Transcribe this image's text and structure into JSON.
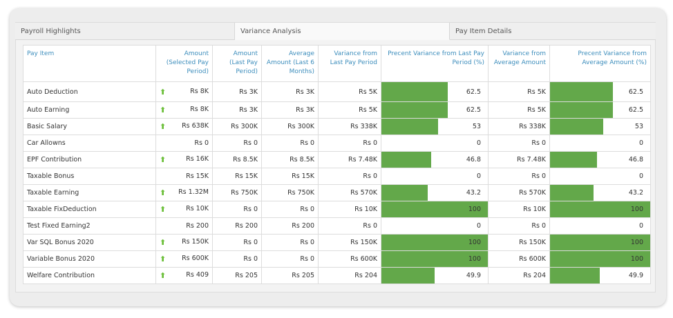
{
  "tabs": [
    {
      "label": "Payroll Highlights"
    },
    {
      "label": "Variance Analysis"
    },
    {
      "label": "Pay Item Details"
    }
  ],
  "columns": {
    "pay_item": "Pay Item",
    "amount_selected": "Amount (Selected Pay Period)",
    "amount_last": "Amount (Last Pay Period)",
    "avg_last6": "Average Amount (Last 6 Months)",
    "var_last": "Variance from Last Pay Period",
    "pct_var_last": "Precent Variance from Last Pay Period (%)",
    "var_avg": "Variance from Average Amount",
    "pct_var_avg": "Precent Variance from Average Amount (%)"
  },
  "colors": {
    "bar": "#63a84a",
    "arrow": "#6cbf3a",
    "header_text": "#3c8dbc"
  },
  "rows": [
    {
      "name": "Auto Deduction",
      "up": true,
      "amount": "Rs 8K",
      "last": "Rs 3K",
      "avg": "Rs 3K",
      "var_last": "Rs 5K",
      "pct_last": "62.5",
      "var_avg": "Rs 5K",
      "pct_avg": "62.5"
    },
    {
      "name": "Auto Earning",
      "up": true,
      "amount": "Rs 8K",
      "last": "Rs 3K",
      "avg": "Rs 3K",
      "var_last": "Rs 5K",
      "pct_last": "62.5",
      "var_avg": "Rs 5K",
      "pct_avg": "62.5"
    },
    {
      "name": "Basic Salary",
      "up": true,
      "amount": "Rs 638K",
      "last": "Rs 300K",
      "avg": "Rs 300K",
      "var_last": "Rs 338K",
      "pct_last": "53",
      "var_avg": "Rs 338K",
      "pct_avg": "53"
    },
    {
      "name": "Car Allowns",
      "up": false,
      "amount": "Rs 0",
      "last": "Rs 0",
      "avg": "Rs 0",
      "var_last": "Rs 0",
      "pct_last": "0",
      "var_avg": "Rs 0",
      "pct_avg": "0"
    },
    {
      "name": "EPF Contribution",
      "up": true,
      "amount": "Rs 16K",
      "last": "Rs 8.5K",
      "avg": "Rs 8.5K",
      "var_last": "Rs 7.48K",
      "pct_last": "46.8",
      "var_avg": "Rs 7.48K",
      "pct_avg": "46.8"
    },
    {
      "name": "Taxable Bonus",
      "up": false,
      "amount": "Rs 15K",
      "last": "Rs 15K",
      "avg": "Rs 15K",
      "var_last": "Rs 0",
      "pct_last": "0",
      "var_avg": "Rs 0",
      "pct_avg": "0"
    },
    {
      "name": "Taxable Earning",
      "up": true,
      "amount": "Rs 1.32M",
      "last": "Rs 750K",
      "avg": "Rs 750K",
      "var_last": "Rs 570K",
      "pct_last": "43.2",
      "var_avg": "Rs 570K",
      "pct_avg": "43.2"
    },
    {
      "name": "Taxable FixDeduction",
      "up": true,
      "amount": "Rs 10K",
      "last": "Rs 0",
      "avg": "Rs 0",
      "var_last": "Rs 10K",
      "pct_last": "100",
      "var_avg": "Rs 10K",
      "pct_avg": "100"
    },
    {
      "name": "Test Fixed Earning2",
      "up": false,
      "amount": "Rs 200",
      "last": "Rs 200",
      "avg": "Rs 200",
      "var_last": "Rs 0",
      "pct_last": "0",
      "var_avg": "Rs 0",
      "pct_avg": "0"
    },
    {
      "name": "Var SQL Bonus 2020",
      "up": true,
      "amount": "Rs 150K",
      "last": "Rs 0",
      "avg": "Rs 0",
      "var_last": "Rs 150K",
      "pct_last": "100",
      "var_avg": "Rs 150K",
      "pct_avg": "100"
    },
    {
      "name": "Variable Bonus 2020",
      "up": true,
      "amount": "Rs 600K",
      "last": "Rs 0",
      "avg": "Rs 0",
      "var_last": "Rs 600K",
      "pct_last": "100",
      "var_avg": "Rs 600K",
      "pct_avg": "100"
    },
    {
      "name": "Welfare Contribution",
      "up": true,
      "amount": "Rs 409",
      "last": "Rs 205",
      "avg": "Rs 205",
      "var_last": "Rs 204",
      "pct_last": "49.9",
      "var_avg": "Rs 204",
      "pct_avg": "49.9"
    }
  ]
}
